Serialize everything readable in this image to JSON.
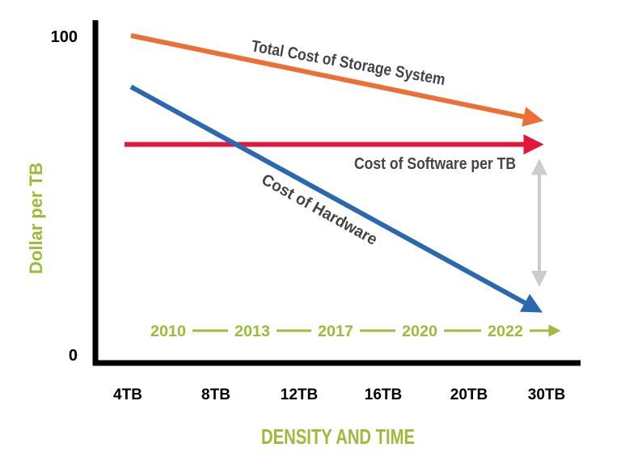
{
  "chart_data": {
    "type": "line",
    "title": "",
    "xlabel": "DENSITY AND TIME",
    "ylabel": "Dollar per TB",
    "categories": [
      "4TB",
      "8TB",
      "12TB",
      "16TB",
      "20TB",
      "30TB"
    ],
    "ylim": [
      0,
      100
    ],
    "y_tick_labels": [
      "0",
      "100"
    ],
    "grid": false,
    "legend": "none",
    "series": [
      {
        "name": "Total Cost of Storage System",
        "color": "#ec6f35",
        "start": 100,
        "end": 74
      },
      {
        "name": "Cost of Software per TB",
        "color": "#e3173e",
        "start": 66,
        "end": 66
      },
      {
        "name": "Cost of Hardware",
        "color": "#2a68b0",
        "start": 84,
        "end": 15
      }
    ],
    "timeline": {
      "years": [
        "2010",
        "2013",
        "2017",
        "2020",
        "2022"
      ],
      "color": "#9dba3b"
    },
    "gap_marker": {
      "color": "#cccccc",
      "from": 59,
      "to": 24
    },
    "colors": {
      "axis": "#000000",
      "axis_title": "#9dba3b",
      "series_label": "#444444"
    }
  }
}
